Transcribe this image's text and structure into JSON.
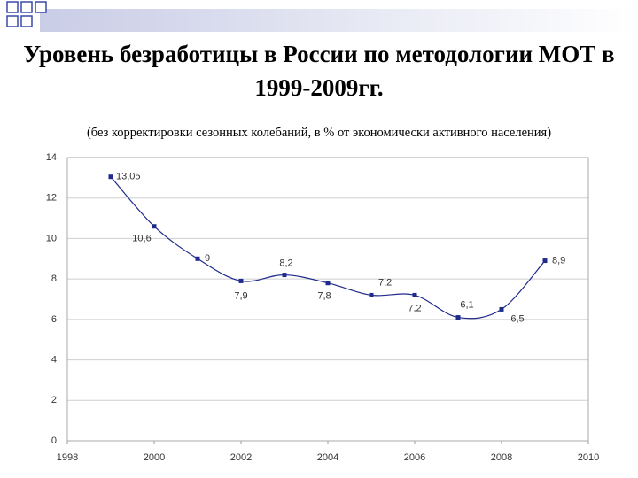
{
  "chart_data": {
    "type": "line",
    "title": "Уровень безработицы в России по методологии МОТ  в 1999-2009гг.",
    "subtitle": "(без корректировки сезонных колебаний, в % от экономически активного населения)",
    "x": [
      1999,
      2000,
      2001,
      2002,
      2003,
      2004,
      2005,
      2006,
      2007,
      2008,
      2009
    ],
    "series": [
      {
        "color": "#1f2a8c",
        "values": [
          13.05,
          10.6,
          9,
          7.9,
          8.2,
          7.8,
          7.2,
          7.2,
          6.1,
          6.5,
          8.9
        ],
        "value_labels": [
          "13,05",
          "10,6",
          "9",
          "7,9",
          "8,2",
          "7,8",
          "7,2",
          "7,2",
          "6,1",
          "6,5",
          "8,9"
        ]
      }
    ],
    "xlim": [
      1998,
      2010
    ],
    "xticks": [
      1998,
      2000,
      2002,
      2004,
      2006,
      2008,
      2010
    ],
    "ylim": [
      0,
      14
    ],
    "yticks": [
      0,
      2,
      4,
      6,
      8,
      10,
      12,
      14
    ],
    "grid": true
  }
}
